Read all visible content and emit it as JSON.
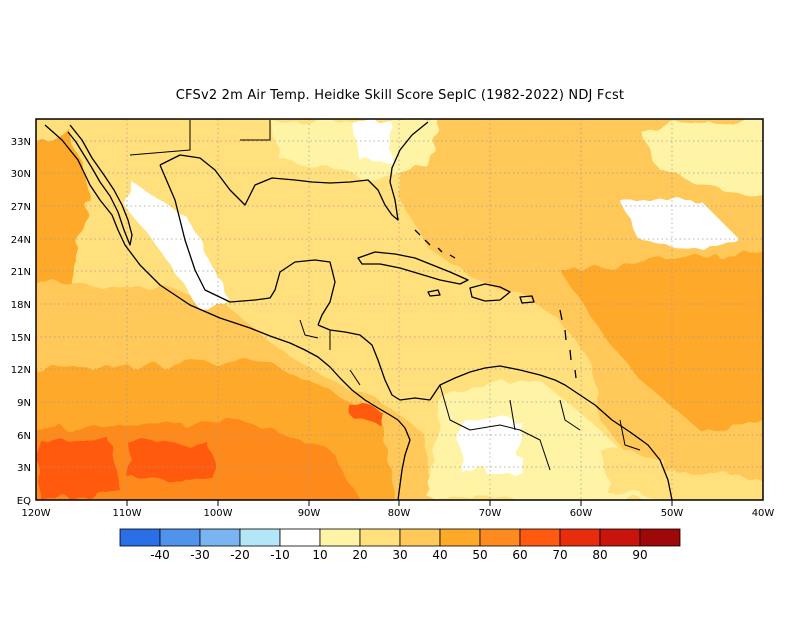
{
  "title": "CFSv2  2m Air Temp. Heidke Skill Score SepIC (1982-2022) NDJ Fcst",
  "map": {
    "lon_range": [
      -120,
      -40
    ],
    "lat_range": [
      0,
      35
    ],
    "x_ticks": [
      "120W",
      "110W",
      "100W",
      "90W",
      "80W",
      "70W",
      "60W",
      "50W",
      "40W"
    ],
    "y_ticks": [
      "EQ",
      "3N",
      "6N",
      "9N",
      "12N",
      "15N",
      "18N",
      "21N",
      "24N",
      "27N",
      "30N",
      "33N"
    ],
    "gridlines": "dotted"
  },
  "colorbar": {
    "labels": [
      "-40",
      "-30",
      "-20",
      "-10",
      "10",
      "20",
      "30",
      "40",
      "50",
      "60",
      "70",
      "80",
      "90"
    ],
    "colors": [
      "#2a6fe6",
      "#4f93ec",
      "#7ab4f1",
      "#b3e6f6",
      "#ffffff",
      "#fff3a6",
      "#ffe07d",
      "#ffc858",
      "#ffa929",
      "#ff8a1f",
      "#ff5a10",
      "#e82d0c",
      "#c8140a",
      "#9e0808"
    ]
  }
}
